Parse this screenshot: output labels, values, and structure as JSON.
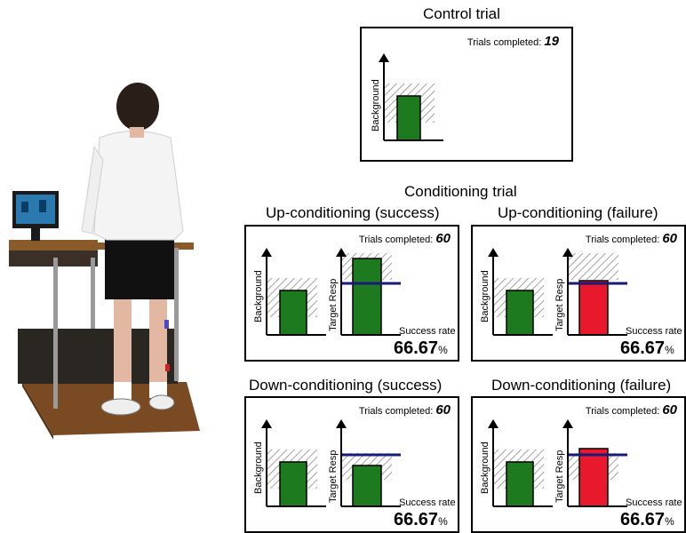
{
  "control": {
    "title": "Control trial",
    "trials_label": "Trials completed:",
    "trials_value": "19",
    "axis_label": "Background"
  },
  "conditioning": {
    "title": "Conditioning trial",
    "panels": [
      {
        "title": "Up-conditioning (success)",
        "trials_label": "Trials completed:",
        "trials_value": "60",
        "bg_label": "Background",
        "target_label": "Target Resp",
        "sr_label": "Success rate",
        "sr_value": "66.67",
        "sr_unit": "%",
        "result": "success",
        "result_color": "#1e7a1e"
      },
      {
        "title": "Up-conditioning (failure)",
        "trials_label": "Trials completed:",
        "trials_value": "60",
        "bg_label": "Background",
        "target_label": "Target Resp",
        "sr_label": "Success rate",
        "sr_value": "66.67",
        "sr_unit": "%",
        "result": "failure",
        "result_color": "#e8192c"
      },
      {
        "title": "Down-conditioning (success)",
        "trials_label": "Trials completed:",
        "trials_value": "60",
        "bg_label": "Background",
        "target_label": "Target Resp",
        "sr_label": "Success rate",
        "sr_value": "66.67",
        "sr_unit": "%",
        "result": "success",
        "result_color": "#1e7a1e"
      },
      {
        "title": "Down-conditioning (failure)",
        "trials_label": "Trials completed:",
        "trials_value": "60",
        "bg_label": "Background",
        "target_label": "Target Resp",
        "sr_label": "Success rate",
        "sr_value": "66.67",
        "sr_unit": "%",
        "result": "failure",
        "result_color": "#e8192c"
      }
    ]
  },
  "colors": {
    "success_bar": "#1e7a1e",
    "failure_bar": "#e8192c",
    "threshold_line": "#1a1a7a"
  }
}
